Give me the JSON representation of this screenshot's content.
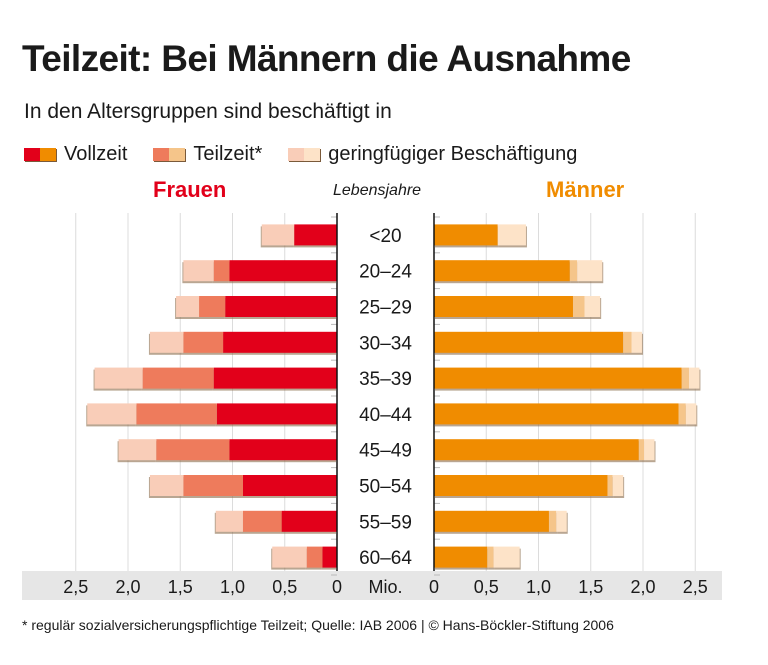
{
  "title": "Teilzeit: Bei Männern die Ausnahme",
  "subtitle": "In den Altersgruppen sind beschäftigt in",
  "legend": [
    {
      "label": "Vollzeit",
      "colors": [
        "#e2001a",
        "#f08c00"
      ]
    },
    {
      "label": "Teilzeit*",
      "colors": [
        "#ee7b5c",
        "#f5c58a"
      ]
    },
    {
      "label": "geringfügiger Beschäftigung",
      "colors": [
        "#f9cdb8",
        "#fde3c8"
      ]
    }
  ],
  "footnote": "* regulär sozialversicherungspflichtige Teilzeit; Quelle: IAB 2006 | © Hans-Böckler-Stiftung 2006",
  "chart_data": {
    "type": "bar",
    "orientation": "horizontal-stacked-pyramid",
    "center_label": "Lebensjahre",
    "unit_label": "Mio.",
    "categories": [
      "<20",
      "20–24",
      "25–29",
      "30–34",
      "35–39",
      "40–44",
      "45–49",
      "50–54",
      "55–59",
      "60–64"
    ],
    "xlim": [
      0,
      2.5
    ],
    "ticks": [
      "0",
      "0,5",
      "1,0",
      "1,5",
      "2,0",
      "2,5"
    ],
    "grid": true,
    "groups": [
      {
        "name": "Frauen",
        "side": "left",
        "series": [
          {
            "name": "Vollzeit",
            "color": "#e2001a",
            "values": [
              0.41,
              1.03,
              1.07,
              1.09,
              1.18,
              1.15,
              1.03,
              0.9,
              0.53,
              0.14
            ]
          },
          {
            "name": "Teilzeit*",
            "color": "#ee7b5c",
            "values": [
              0.0,
              0.15,
              0.25,
              0.38,
              0.68,
              0.77,
              0.7,
              0.57,
              0.37,
              0.15
            ]
          },
          {
            "name": "geringfügiger Beschäftigung",
            "color": "#f9cdb8",
            "values": [
              0.31,
              0.29,
              0.22,
              0.32,
              0.46,
              0.47,
              0.36,
              0.32,
              0.26,
              0.33
            ]
          }
        ]
      },
      {
        "name": "Männer",
        "side": "right",
        "series": [
          {
            "name": "Vollzeit",
            "color": "#f08c00",
            "values": [
              0.61,
              1.3,
              1.33,
              1.81,
              2.37,
              2.34,
              1.96,
              1.66,
              1.1,
              0.51
            ]
          },
          {
            "name": "Teilzeit*",
            "color": "#f5c58a",
            "values": [
              0.0,
              0.07,
              0.11,
              0.08,
              0.07,
              0.07,
              0.05,
              0.05,
              0.07,
              0.06
            ]
          },
          {
            "name": "geringfügiger Beschäftigung",
            "color": "#fde3c8",
            "values": [
              0.27,
              0.24,
              0.15,
              0.1,
              0.1,
              0.1,
              0.1,
              0.1,
              0.1,
              0.25
            ]
          }
        ]
      }
    ]
  }
}
